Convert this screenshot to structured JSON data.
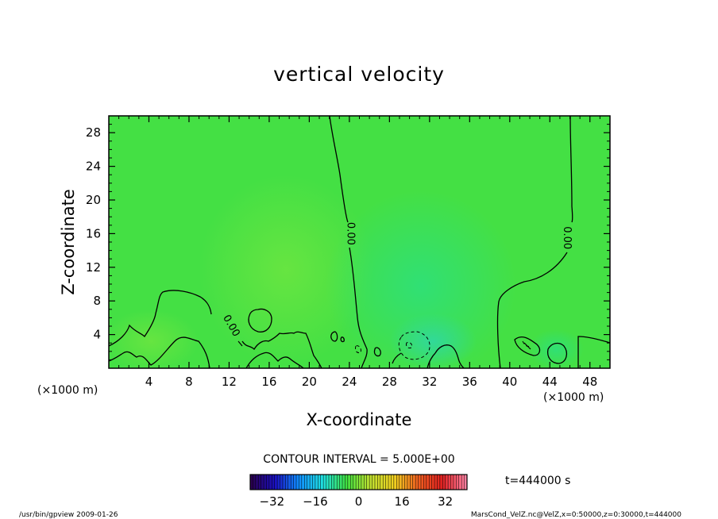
{
  "chart_data": {
    "type": "heatmap",
    "title": "vertical velocity",
    "xlabel": "X-coordinate",
    "ylabel": "Z-coordinate",
    "x_unit": "(×1000 m)",
    "y_unit": "(×1000 m)",
    "xlim": [
      0,
      50
    ],
    "ylim": [
      0,
      30
    ],
    "x_ticks": [
      4,
      8,
      12,
      16,
      20,
      24,
      28,
      32,
      36,
      40,
      44,
      48
    ],
    "y_ticks": [
      4,
      8,
      12,
      16,
      20,
      24,
      28
    ],
    "contour_labels": [
      {
        "text": "0.00",
        "x": 24.2,
        "y": 16.0
      },
      {
        "text": "0.00",
        "x": 45.8,
        "y": 15.5
      },
      {
        "text": "0.00",
        "x": 12.3,
        "y": 5.1
      }
    ],
    "contour_interval_text": "CONTOUR INTERVAL = 5.000E+00",
    "time_text": "t=444000 s",
    "colorbar": {
      "min": -40,
      "max": 40,
      "ticks": [
        -32,
        -16,
        0,
        16,
        32
      ],
      "colors": [
        "#2a0050",
        "#1a10c0",
        "#1090ff",
        "#20e0e0",
        "#40e040",
        "#c0e030",
        "#f0d020",
        "#f06020",
        "#e02020",
        "#ff80a0"
      ]
    },
    "field_color": "#44e044"
  },
  "footer": {
    "left": "/usr/bin/gpview  2009-01-26",
    "right": "MarsCond_VelZ.nc@VelZ,x=0:50000,z=0:30000,t=444000"
  }
}
